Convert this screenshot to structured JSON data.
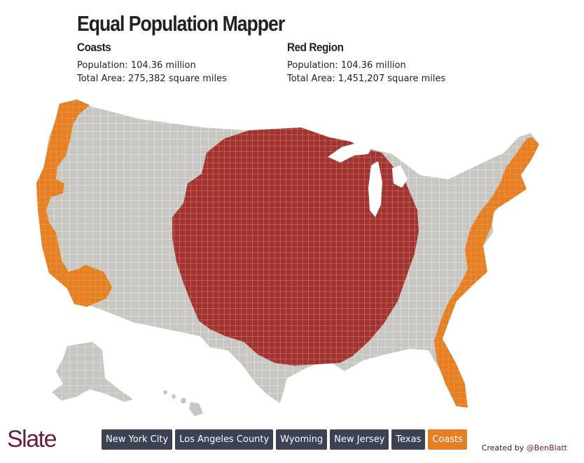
{
  "title": "Equal Population Mapper",
  "left_region": {
    "name": "Coasts",
    "population": "Population: 104.36 million",
    "area": "Total Area: 275,382 square miles"
  },
  "right_region": {
    "name": "Red Region",
    "population": "Population: 104.36 million",
    "area": "Total Area: 1,451,207 square miles"
  },
  "buttons": [
    "New York City",
    "Los Angeles County",
    "Wyoming",
    "New Jersey",
    "Texas",
    "Coasts"
  ],
  "active_button": "Coasts",
  "logo": "Slate",
  "credit": {
    "prefix": "Created by",
    "handle": "@BenBlatt"
  },
  "colors": {
    "coasts": "#e67e22",
    "red_region": "#a3332e",
    "other": "#c8c6c1",
    "borders": "#ffffff",
    "button_bg": "#3b4254",
    "logo": "#6b1d3e"
  }
}
